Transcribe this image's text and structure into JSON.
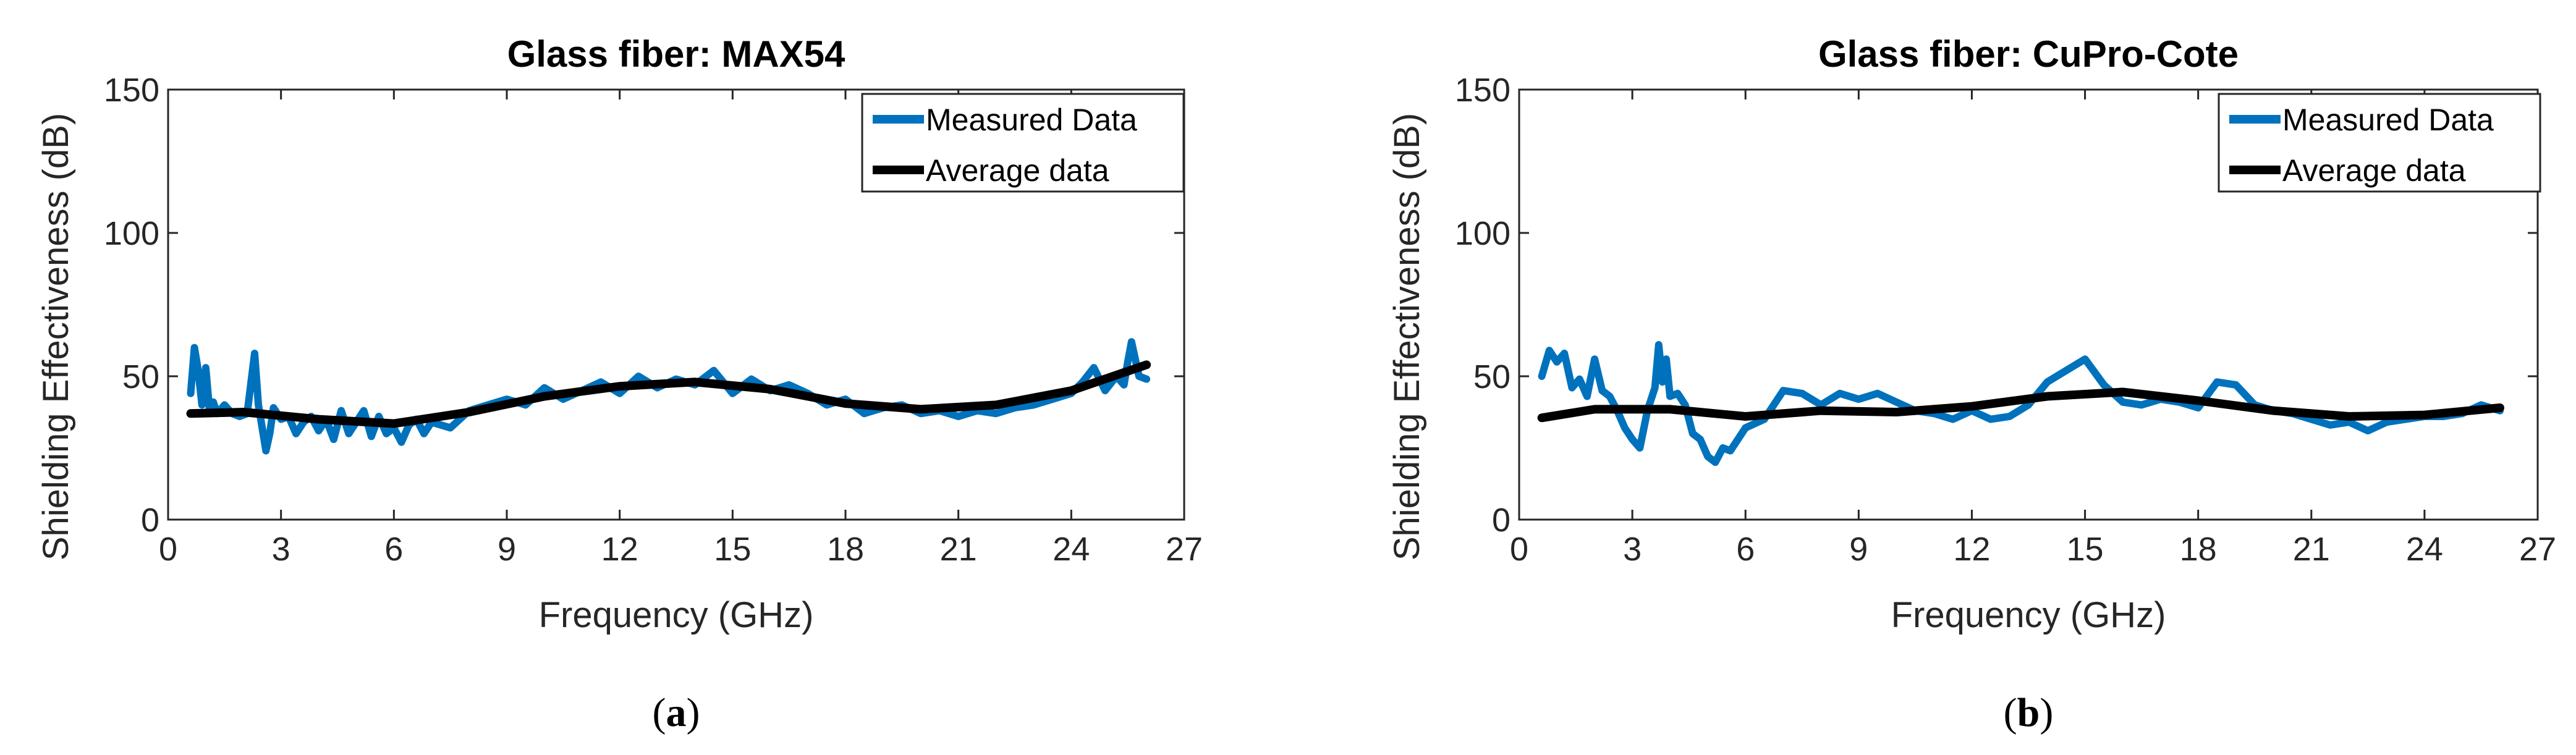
{
  "colors": {
    "measured": "#0072BD",
    "average": "#000000",
    "axis": "#262626"
  },
  "chart_data": [
    {
      "type": "line",
      "title": "Glass fiber: MAX54",
      "panel_label": "a",
      "xlabel": "Frequency (GHz)",
      "ylabel": "Shielding Effectiveness (dB)",
      "xlim": [
        0,
        27
      ],
      "ylim": [
        0,
        150
      ],
      "xticks": [
        0,
        3,
        6,
        9,
        12,
        15,
        18,
        21,
        24,
        27
      ],
      "yticks": [
        0,
        50,
        100,
        150
      ],
      "legend_position": "top-right",
      "series": [
        {
          "name": "Measured Data",
          "x": [
            0.6,
            0.7,
            0.8,
            0.9,
            1.0,
            1.1,
            1.2,
            1.3,
            1.5,
            1.7,
            1.9,
            2.1,
            2.3,
            2.4,
            2.5,
            2.6,
            2.7,
            2.8,
            3.0,
            3.2,
            3.4,
            3.6,
            3.8,
            4.0,
            4.2,
            4.4,
            4.6,
            4.8,
            5.0,
            5.2,
            5.4,
            5.6,
            5.8,
            6.0,
            6.2,
            6.4,
            6.6,
            6.8,
            7.0,
            7.5,
            8.0,
            8.5,
            9.0,
            9.5,
            10.0,
            10.5,
            11.0,
            11.5,
            12.0,
            12.5,
            13.0,
            13.5,
            14.0,
            14.5,
            15.0,
            15.5,
            16.0,
            16.5,
            17.0,
            17.5,
            18.0,
            18.5,
            19.0,
            19.5,
            20.0,
            20.5,
            21.0,
            21.5,
            22.0,
            22.5,
            23.0,
            23.5,
            24.0,
            24.3,
            24.6,
            24.9,
            25.2,
            25.4,
            25.5,
            25.6,
            25.8,
            26.0
          ],
          "values": [
            44,
            60,
            52,
            40,
            53,
            38,
            41,
            37,
            40,
            37,
            36,
            37,
            58,
            40,
            32,
            24,
            30,
            39,
            35,
            36,
            30,
            34,
            36,
            31,
            35,
            28,
            38,
            30,
            34,
            38,
            29,
            36,
            30,
            32,
            27,
            33,
            35,
            30,
            34,
            32,
            38,
            40,
            42,
            40,
            46,
            42,
            45,
            48,
            44,
            50,
            46,
            49,
            47,
            52,
            44,
            49,
            45,
            47,
            44,
            40,
            42,
            37,
            39,
            40,
            37,
            38,
            36,
            38,
            37,
            39,
            40,
            42,
            44,
            48,
            53,
            45,
            50,
            47,
            55,
            62,
            50,
            49
          ]
        },
        {
          "name": "Average data",
          "x": [
            0.6,
            2,
            4,
            6,
            8,
            10,
            12,
            14,
            16,
            18,
            20,
            22,
            24,
            26
          ],
          "values": [
            37,
            37.5,
            35,
            33.5,
            37.5,
            43,
            46.5,
            48,
            45.5,
            40.5,
            38.5,
            40,
            45,
            54
          ]
        }
      ]
    },
    {
      "type": "line",
      "title": "Glass fiber: CuPro-Cote",
      "panel_label": "b",
      "xlabel": "Frequency (GHz)",
      "ylabel": "Shielding Effectiveness (dB)",
      "xlim": [
        0,
        27
      ],
      "ylim": [
        0,
        150
      ],
      "xticks": [
        0,
        3,
        6,
        9,
        12,
        15,
        18,
        21,
        24,
        27
      ],
      "yticks": [
        0,
        50,
        100,
        150
      ],
      "legend_position": "top-right",
      "series": [
        {
          "name": "Measured Data",
          "x": [
            0.6,
            0.8,
            1.0,
            1.2,
            1.4,
            1.6,
            1.8,
            2.0,
            2.2,
            2.4,
            2.6,
            2.8,
            3.0,
            3.2,
            3.4,
            3.6,
            3.7,
            3.8,
            3.9,
            4.0,
            4.2,
            4.4,
            4.6,
            4.8,
            5.0,
            5.2,
            5.4,
            5.6,
            5.8,
            6.0,
            6.5,
            7.0,
            7.5,
            8.0,
            8.5,
            9.0,
            9.5,
            10.0,
            10.5,
            11.0,
            11.5,
            12.0,
            12.5,
            13.0,
            13.5,
            14.0,
            14.5,
            15.0,
            15.5,
            16.0,
            16.5,
            17.0,
            17.5,
            18.0,
            18.5,
            19.0,
            19.5,
            20.0,
            20.5,
            21.0,
            21.5,
            22.0,
            22.5,
            23.0,
            23.5,
            24.0,
            24.5,
            25.0,
            25.5,
            26.0
          ],
          "values": [
            50,
            59,
            55,
            58,
            46,
            49,
            43,
            56,
            45,
            43,
            38,
            32,
            28,
            25,
            38,
            46,
            61,
            48,
            56,
            43,
            44,
            40,
            30,
            28,
            22,
            20,
            25,
            24,
            28,
            32,
            35,
            45,
            44,
            40,
            44,
            42,
            44,
            41,
            38,
            37,
            35,
            38,
            35,
            36,
            40,
            48,
            52,
            56,
            47,
            41,
            40,
            42,
            41,
            39,
            48,
            47,
            40,
            38,
            37,
            35,
            33,
            34,
            31,
            34,
            35,
            36,
            36,
            37,
            40,
            38
          ]
        },
        {
          "name": "Average data",
          "x": [
            0.6,
            2,
            4,
            6,
            8,
            10,
            12,
            14,
            16,
            18,
            20,
            22,
            24,
            26
          ],
          "values": [
            35.5,
            38.5,
            38.5,
            36,
            38,
            37.5,
            39.5,
            43,
            44.5,
            41.5,
            38,
            36,
            36.5,
            39
          ]
        }
      ]
    }
  ]
}
